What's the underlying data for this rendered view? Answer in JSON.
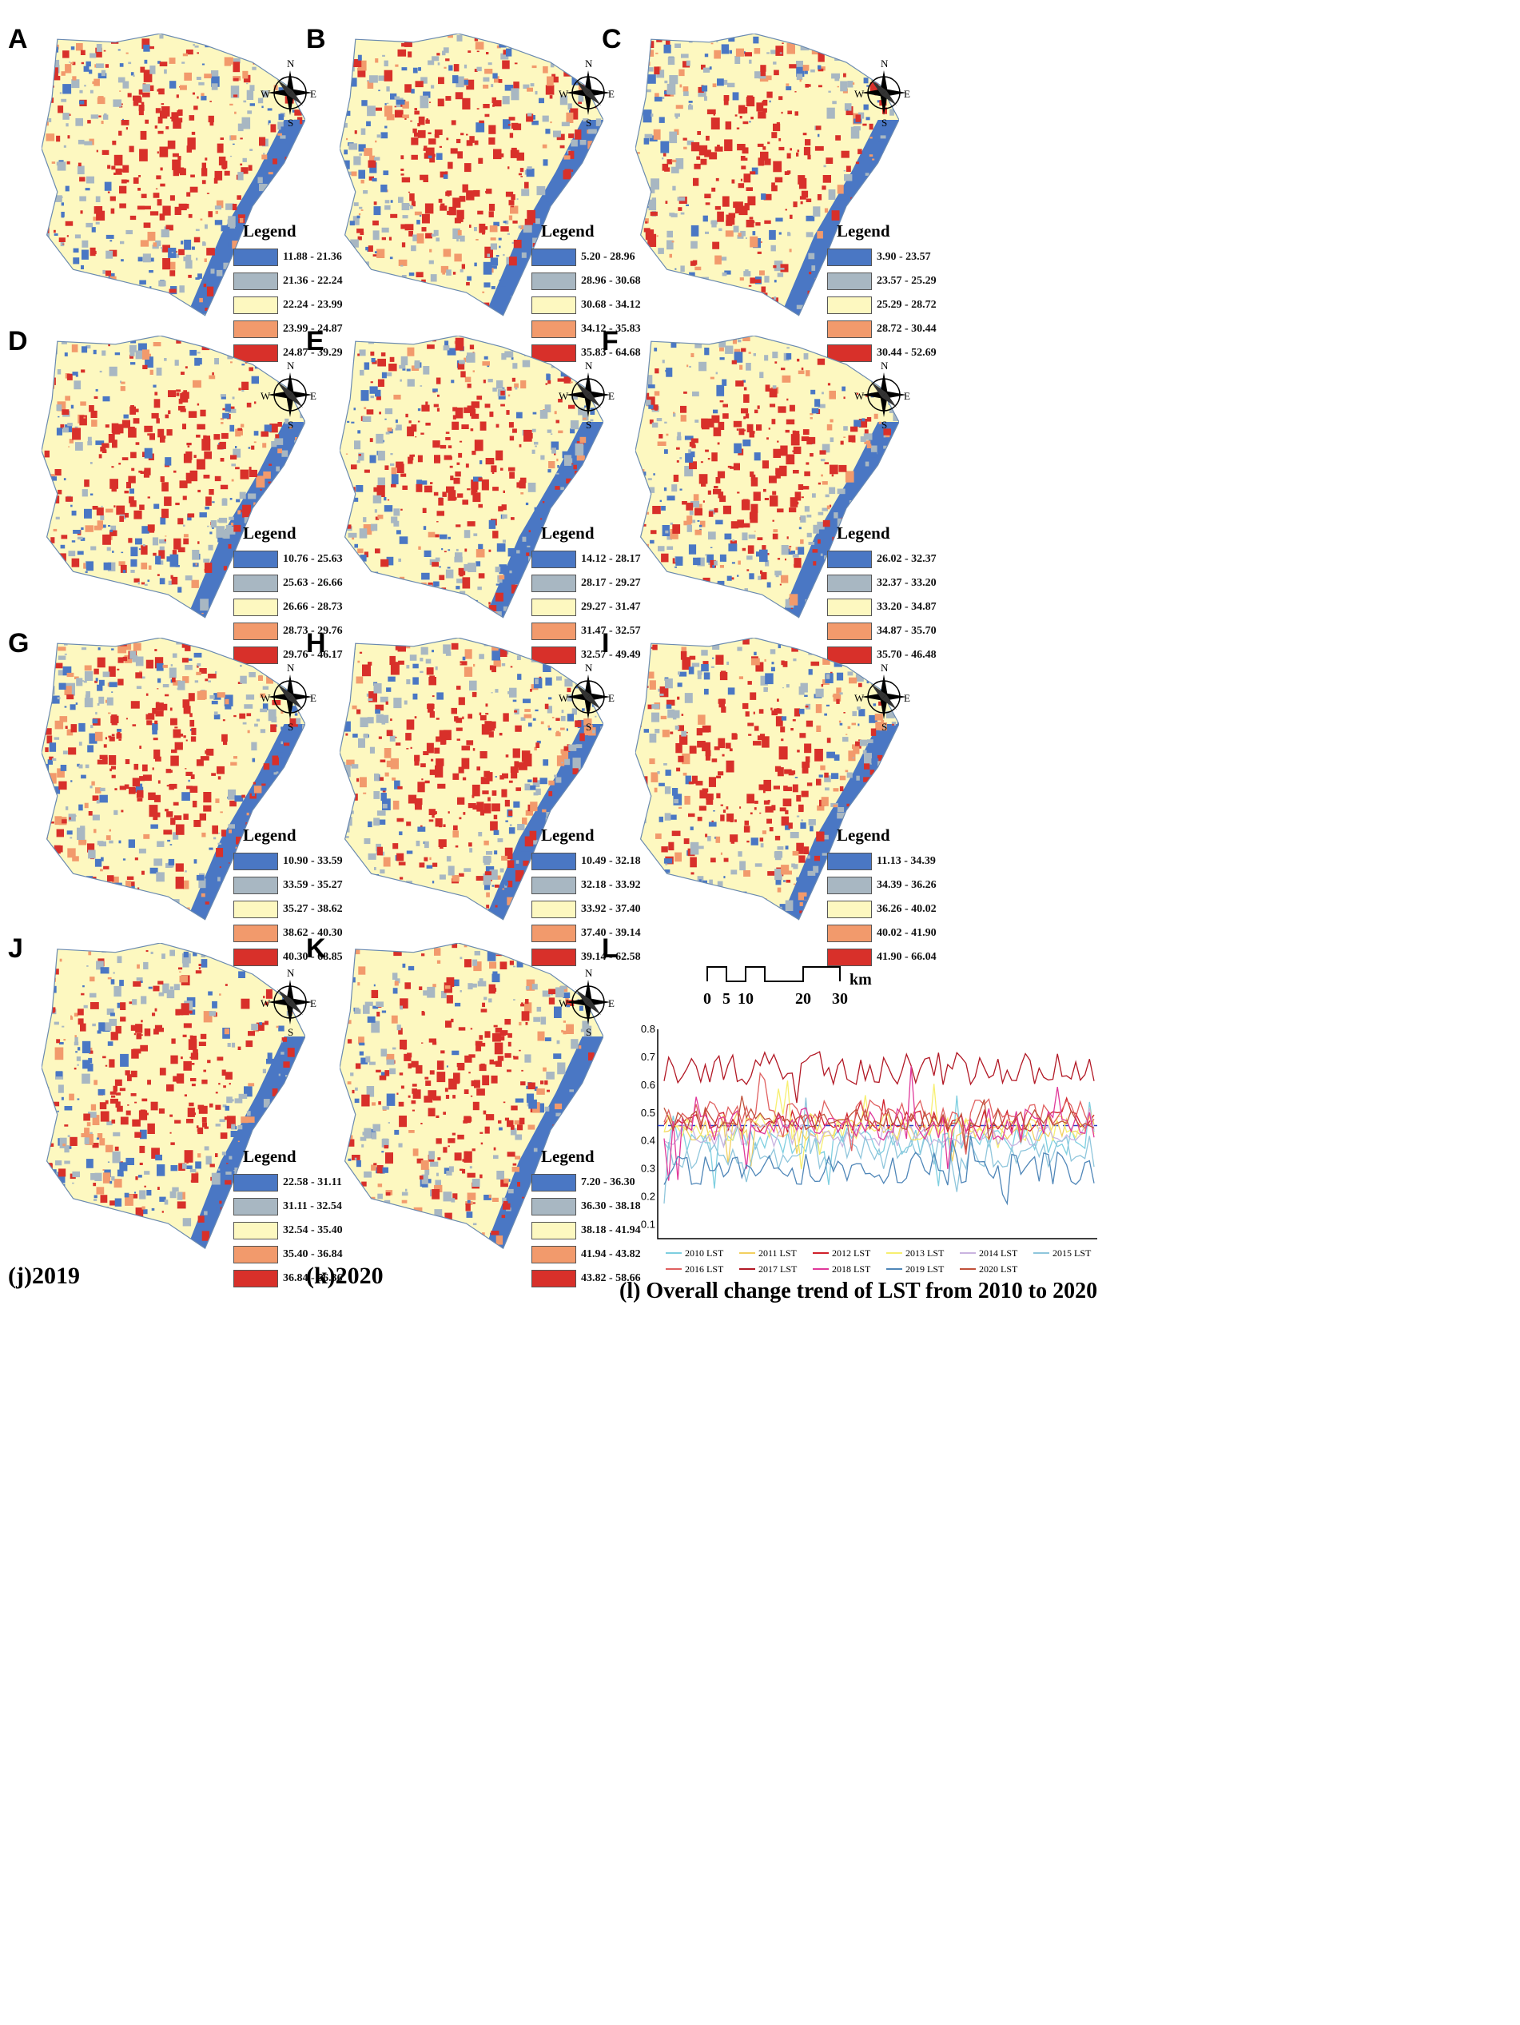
{
  "legend_title": "Legend",
  "compass_letters": {
    "n": "N",
    "s": "S",
    "e": "E",
    "w": "W"
  },
  "colors": {
    "c1": "#4a77c4",
    "c2": "#a8b7c2",
    "c3": "#fdf8c0",
    "c4": "#f29a6c",
    "c5": "#d8302a"
  },
  "panels": [
    {
      "label": "A",
      "legend": [
        "11.88 - 21.36",
        "21.36 - 22.24",
        "22.24 - 23.99",
        "23.99 - 24.87",
        "24.87 - 39.29"
      ],
      "caption": ""
    },
    {
      "label": "B",
      "legend": [
        "5.20 - 28.96",
        "28.96 - 30.68",
        "30.68 - 34.12",
        "34.12 - 35.83",
        "35.83 - 64.68"
      ],
      "caption": ""
    },
    {
      "label": "C",
      "legend": [
        "3.90 - 23.57",
        "23.57 - 25.29",
        "25.29 - 28.72",
        "28.72 - 30.44",
        "30.44 - 52.69"
      ],
      "caption": ""
    },
    {
      "label": "D",
      "legend": [
        "10.76 - 25.63",
        "25.63 - 26.66",
        "26.66 - 28.73",
        "28.73 - 29.76",
        "29.76 - 46.17"
      ],
      "caption": ""
    },
    {
      "label": "E",
      "legend": [
        "14.12 - 28.17",
        "28.17 - 29.27",
        "29.27 - 31.47",
        "31.47 - 32.57",
        "32.57 - 49.49"
      ],
      "caption": ""
    },
    {
      "label": "F",
      "legend": [
        "26.02 - 32.37",
        "32.37 - 33.20",
        "33.20 - 34.87",
        "34.87 - 35.70",
        "35.70 - 46.48"
      ],
      "caption": ""
    },
    {
      "label": "G",
      "legend": [
        "10.90 - 33.59",
        "33.59 - 35.27",
        "35.27 - 38.62",
        "38.62 - 40.30",
        "40.30 - 68.85"
      ],
      "caption": ""
    },
    {
      "label": "H",
      "legend": [
        "10.49 - 32.18",
        "32.18 - 33.92",
        "33.92 - 37.40",
        "37.40 - 39.14",
        "39.14 - 62.58"
      ],
      "caption": ""
    },
    {
      "label": "I",
      "legend": [
        "11.13 - 34.39",
        "34.39 - 36.26",
        "36.26 - 40.02",
        "40.02 - 41.90",
        "41.90 - 66.04"
      ],
      "caption": ""
    },
    {
      "label": "J",
      "legend": [
        "22.58 - 31.11",
        "31.11 - 32.54",
        "32.54 - 35.40",
        "35.40 - 36.84",
        "36.84 - 56.36"
      ],
      "caption": "(j)2019"
    },
    {
      "label": "K",
      "legend": [
        "7.20 - 36.30",
        "36.30 - 38.18",
        "38.18 - 41.94",
        "41.94 - 43.82",
        "43.82 - 58.66"
      ],
      "caption": "(k)2020"
    }
  ],
  "panel_l": {
    "label": "L",
    "caption": "(l) Overall change trend of LST from 2010 to 2020"
  },
  "scale_bar": {
    "ticks": [
      "0",
      "5",
      "10",
      "20",
      "30"
    ],
    "unit": "km"
  },
  "chart_data": {
    "type": "line",
    "title": "",
    "xlabel": "",
    "ylabel": "",
    "ylim": [
      0.05,
      0.8
    ],
    "yticks": [
      "0.1",
      "0.2",
      "0.3",
      "0.4",
      "0.5",
      "0.6",
      "0.7",
      "0.8"
    ],
    "reference_line": 0.455,
    "grid": false,
    "legend_position": "bottom",
    "series": [
      {
        "name": "2010 LST",
        "color": "#7ecfe0",
        "base": 0.4,
        "amp": 0.05
      },
      {
        "name": "2011 LST",
        "color": "#f2d060",
        "base": 0.44,
        "amp": 0.04
      },
      {
        "name": "2012 LST",
        "color": "#d0202a",
        "base": 0.47,
        "amp": 0.04
      },
      {
        "name": "2013 LST",
        "color": "#f7ef70",
        "base": 0.45,
        "amp": 0.05
      },
      {
        "name": "2014 LST",
        "color": "#c9b3e0",
        "base": 0.42,
        "amp": 0.04
      },
      {
        "name": "2015 LST",
        "color": "#8fc6dc",
        "base": 0.36,
        "amp": 0.06
      },
      {
        "name": "2016 LST",
        "color": "#e06060",
        "base": 0.5,
        "amp": 0.05
      },
      {
        "name": "2017 LST",
        "color": "#b21825",
        "base": 0.66,
        "amp": 0.06
      },
      {
        "name": "2018 LST",
        "color": "#e0389a",
        "base": 0.46,
        "amp": 0.06
      },
      {
        "name": "2019 LST",
        "color": "#4f86b8",
        "base": 0.3,
        "amp": 0.06
      },
      {
        "name": "2020 LST",
        "color": "#c0503a",
        "base": 0.48,
        "amp": 0.04
      }
    ]
  }
}
